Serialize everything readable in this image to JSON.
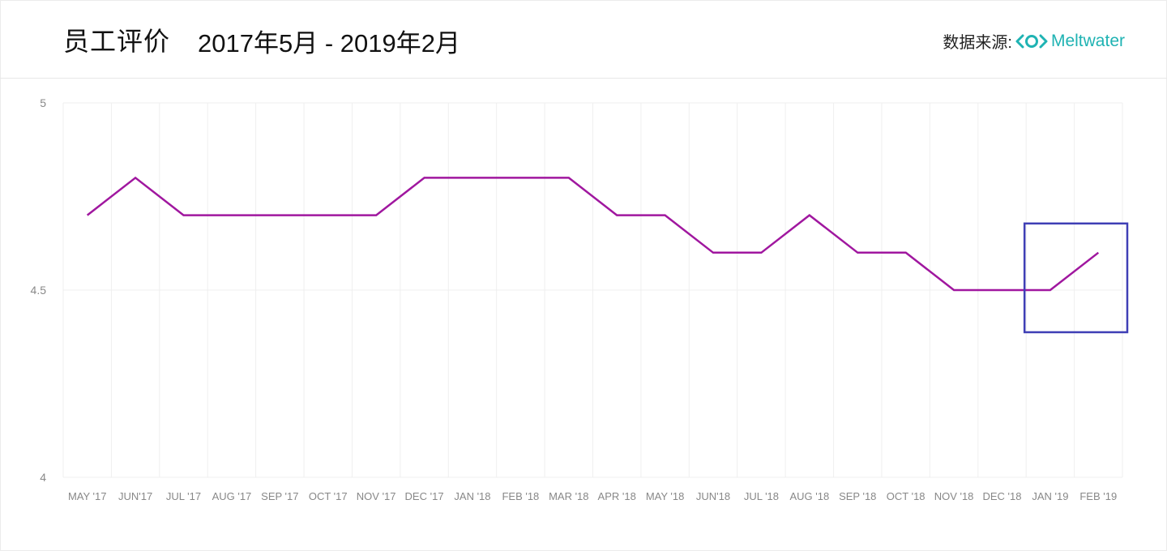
{
  "header": {
    "title": "员工评价",
    "date_range": "2017年5月 - 2019年2月",
    "source_label": "数据来源:",
    "source_brand": "Meltwater",
    "brand_color": "#1fb3b3"
  },
  "chart_data": {
    "type": "line",
    "categories": [
      "MAY '17",
      "JUN'17",
      "JUL '17",
      "AUG '17",
      "SEP '17",
      "OCT '17",
      "NOV '17",
      "DEC '17",
      "JAN '18",
      "FEB '18",
      "MAR '18",
      "APR '18",
      "MAY '18",
      "JUN'18",
      "JUL '18",
      "AUG '18",
      "SEP '18",
      "OCT '18",
      "NOV '18",
      "DEC '18",
      "JAN '19",
      "FEB '19"
    ],
    "series": [
      {
        "color": "#a0179f",
        "values": [
          4.7,
          4.8,
          4.7,
          4.7,
          4.7,
          4.7,
          4.7,
          4.8,
          4.8,
          4.8,
          4.8,
          4.7,
          4.7,
          4.6,
          4.6,
          4.7,
          4.6,
          4.6,
          4.5,
          4.5,
          4.5,
          4.6
        ]
      }
    ],
    "yticks": [
      4,
      4.5,
      5
    ],
    "ylim": [
      4,
      5
    ],
    "grid": true,
    "highlight": {
      "from_category": "JAN '19",
      "to_category": "FEB '19",
      "color": "#3f3fb5"
    }
  }
}
